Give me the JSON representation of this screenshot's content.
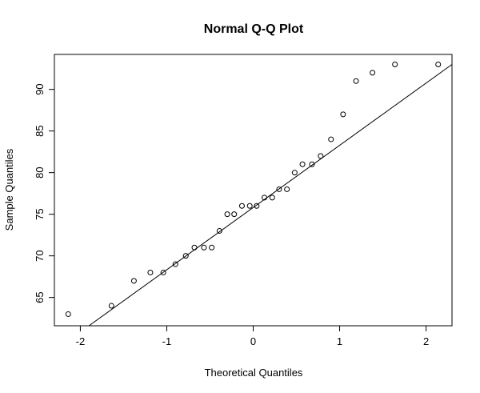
{
  "chart_data": {
    "type": "scatter",
    "title": "Normal Q-Q Plot",
    "xlabel": "Theoretical Quantiles",
    "ylabel": "Sample Quantiles",
    "xlim": [
      -2.3,
      2.3
    ],
    "ylim": [
      61.6,
      94.2
    ],
    "xticks": [
      -2,
      -1,
      0,
      1,
      2
    ],
    "yticks": [
      65,
      70,
      75,
      80,
      85,
      90
    ],
    "grid": false,
    "points": [
      {
        "x": -2.14,
        "y": 63
      },
      {
        "x": -1.64,
        "y": 64
      },
      {
        "x": -1.38,
        "y": 67
      },
      {
        "x": -1.19,
        "y": 68
      },
      {
        "x": -1.04,
        "y": 68
      },
      {
        "x": -0.9,
        "y": 69
      },
      {
        "x": -0.78,
        "y": 70
      },
      {
        "x": -0.68,
        "y": 71
      },
      {
        "x": -0.57,
        "y": 71
      },
      {
        "x": -0.48,
        "y": 71
      },
      {
        "x": -0.39,
        "y": 73
      },
      {
        "x": -0.3,
        "y": 75
      },
      {
        "x": -0.22,
        "y": 75
      },
      {
        "x": -0.13,
        "y": 76
      },
      {
        "x": -0.04,
        "y": 76
      },
      {
        "x": 0.04,
        "y": 76
      },
      {
        "x": 0.13,
        "y": 77
      },
      {
        "x": 0.22,
        "y": 77
      },
      {
        "x": 0.3,
        "y": 78
      },
      {
        "x": 0.39,
        "y": 78
      },
      {
        "x": 0.48,
        "y": 80
      },
      {
        "x": 0.57,
        "y": 81
      },
      {
        "x": 0.68,
        "y": 81
      },
      {
        "x": 0.78,
        "y": 82
      },
      {
        "x": 0.9,
        "y": 84
      },
      {
        "x": 1.04,
        "y": 87
      },
      {
        "x": 1.19,
        "y": 91
      },
      {
        "x": 1.38,
        "y": 92
      },
      {
        "x": 1.64,
        "y": 93
      },
      {
        "x": 2.14,
        "y": 93
      }
    ],
    "reference_line": {
      "x1": -1.9,
      "y1": 61.6,
      "x2": 2.3,
      "y2": 93.0
    }
  }
}
